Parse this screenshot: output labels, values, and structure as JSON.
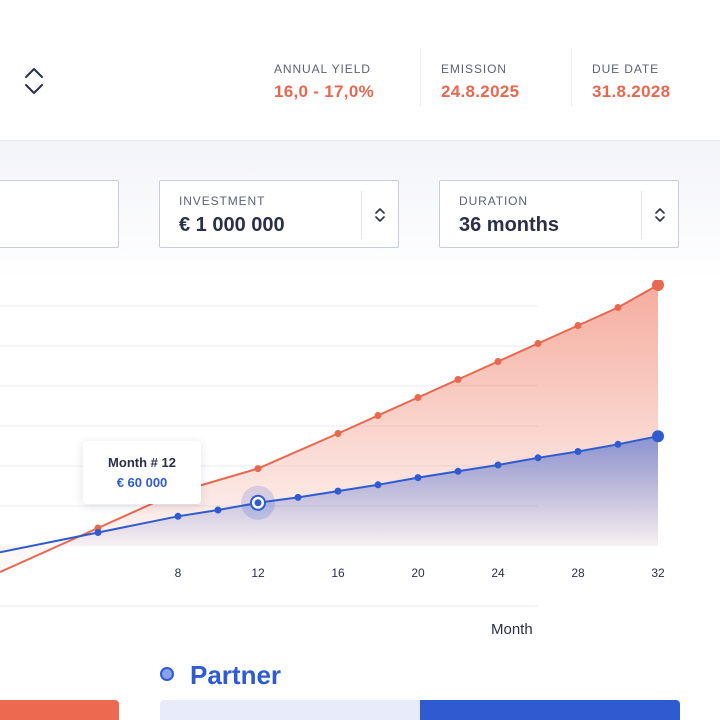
{
  "header": {
    "stats": [
      {
        "label": "ANNUAL YIELD",
        "value": "16,0 - 17,0%"
      },
      {
        "label": "EMISSION",
        "value": "24.8.2025"
      },
      {
        "label": "DUE DATE",
        "value": "31.8.2028"
      }
    ],
    "toggle_icon": "chevron-up-down-icon"
  },
  "inputs": {
    "investment": {
      "label": "INVESTMENT",
      "value": "€ 1 000 000"
    },
    "duration": {
      "label": "DURATION",
      "value": "36 months"
    }
  },
  "tooltip": {
    "title": "Month # 12",
    "value": "€ 60 000"
  },
  "colors": {
    "accent_orange": "#e8674f",
    "accent_blue": "#2f5bd1"
  },
  "legend": {
    "label": "Partner"
  },
  "chart_data": {
    "type": "line",
    "xlabel": "Month",
    "x_ticks": [
      "8",
      "12",
      "16",
      "20",
      "24",
      "28",
      "32"
    ],
    "x": [
      0,
      4,
      8,
      10,
      12,
      14,
      16,
      18,
      20,
      22,
      24,
      26,
      28,
      30,
      32
    ],
    "series": [
      {
        "color": "#e8674f",
        "values": [
          null,
          20,
          60,
          null,
          86,
          null,
          125,
          145,
          165,
          185,
          205,
          225,
          245,
          265,
          290
        ]
      },
      {
        "color": "#2f5bd1",
        "values": [
          null,
          15,
          33,
          40,
          48,
          54,
          61,
          68,
          76,
          83,
          90,
          98,
          105,
          113,
          122
        ]
      }
    ],
    "highlight": {
      "x": 12,
      "series": 1
    },
    "grid": true
  }
}
